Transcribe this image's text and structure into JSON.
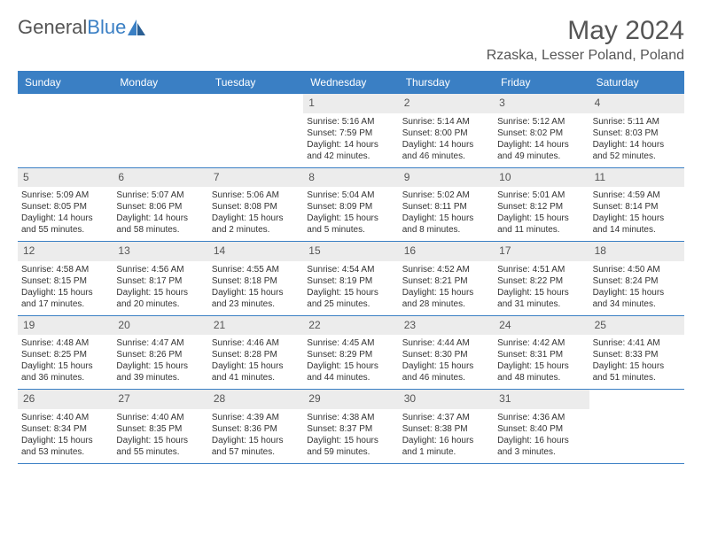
{
  "logo": {
    "text1": "General",
    "text2": "Blue"
  },
  "header": {
    "month": "May 2024",
    "location": "Rzaska, Lesser Poland, Poland"
  },
  "colors": {
    "header_bg": "#3a7fc4",
    "header_text": "#ffffff",
    "daynum_bg": "#ececec",
    "border": "#3a7fc4"
  },
  "day_labels": [
    "Sunday",
    "Monday",
    "Tuesday",
    "Wednesday",
    "Thursday",
    "Friday",
    "Saturday"
  ],
  "weeks": [
    [
      {
        "n": "",
        "sr": "",
        "ss": "",
        "dl": ""
      },
      {
        "n": "",
        "sr": "",
        "ss": "",
        "dl": ""
      },
      {
        "n": "",
        "sr": "",
        "ss": "",
        "dl": ""
      },
      {
        "n": "1",
        "sr": "Sunrise: 5:16 AM",
        "ss": "Sunset: 7:59 PM",
        "dl": "Daylight: 14 hours and 42 minutes."
      },
      {
        "n": "2",
        "sr": "Sunrise: 5:14 AM",
        "ss": "Sunset: 8:00 PM",
        "dl": "Daylight: 14 hours and 46 minutes."
      },
      {
        "n": "3",
        "sr": "Sunrise: 5:12 AM",
        "ss": "Sunset: 8:02 PM",
        "dl": "Daylight: 14 hours and 49 minutes."
      },
      {
        "n": "4",
        "sr": "Sunrise: 5:11 AM",
        "ss": "Sunset: 8:03 PM",
        "dl": "Daylight: 14 hours and 52 minutes."
      }
    ],
    [
      {
        "n": "5",
        "sr": "Sunrise: 5:09 AM",
        "ss": "Sunset: 8:05 PM",
        "dl": "Daylight: 14 hours and 55 minutes."
      },
      {
        "n": "6",
        "sr": "Sunrise: 5:07 AM",
        "ss": "Sunset: 8:06 PM",
        "dl": "Daylight: 14 hours and 58 minutes."
      },
      {
        "n": "7",
        "sr": "Sunrise: 5:06 AM",
        "ss": "Sunset: 8:08 PM",
        "dl": "Daylight: 15 hours and 2 minutes."
      },
      {
        "n": "8",
        "sr": "Sunrise: 5:04 AM",
        "ss": "Sunset: 8:09 PM",
        "dl": "Daylight: 15 hours and 5 minutes."
      },
      {
        "n": "9",
        "sr": "Sunrise: 5:02 AM",
        "ss": "Sunset: 8:11 PM",
        "dl": "Daylight: 15 hours and 8 minutes."
      },
      {
        "n": "10",
        "sr": "Sunrise: 5:01 AM",
        "ss": "Sunset: 8:12 PM",
        "dl": "Daylight: 15 hours and 11 minutes."
      },
      {
        "n": "11",
        "sr": "Sunrise: 4:59 AM",
        "ss": "Sunset: 8:14 PM",
        "dl": "Daylight: 15 hours and 14 minutes."
      }
    ],
    [
      {
        "n": "12",
        "sr": "Sunrise: 4:58 AM",
        "ss": "Sunset: 8:15 PM",
        "dl": "Daylight: 15 hours and 17 minutes."
      },
      {
        "n": "13",
        "sr": "Sunrise: 4:56 AM",
        "ss": "Sunset: 8:17 PM",
        "dl": "Daylight: 15 hours and 20 minutes."
      },
      {
        "n": "14",
        "sr": "Sunrise: 4:55 AM",
        "ss": "Sunset: 8:18 PM",
        "dl": "Daylight: 15 hours and 23 minutes."
      },
      {
        "n": "15",
        "sr": "Sunrise: 4:54 AM",
        "ss": "Sunset: 8:19 PM",
        "dl": "Daylight: 15 hours and 25 minutes."
      },
      {
        "n": "16",
        "sr": "Sunrise: 4:52 AM",
        "ss": "Sunset: 8:21 PM",
        "dl": "Daylight: 15 hours and 28 minutes."
      },
      {
        "n": "17",
        "sr": "Sunrise: 4:51 AM",
        "ss": "Sunset: 8:22 PM",
        "dl": "Daylight: 15 hours and 31 minutes."
      },
      {
        "n": "18",
        "sr": "Sunrise: 4:50 AM",
        "ss": "Sunset: 8:24 PM",
        "dl": "Daylight: 15 hours and 34 minutes."
      }
    ],
    [
      {
        "n": "19",
        "sr": "Sunrise: 4:48 AM",
        "ss": "Sunset: 8:25 PM",
        "dl": "Daylight: 15 hours and 36 minutes."
      },
      {
        "n": "20",
        "sr": "Sunrise: 4:47 AM",
        "ss": "Sunset: 8:26 PM",
        "dl": "Daylight: 15 hours and 39 minutes."
      },
      {
        "n": "21",
        "sr": "Sunrise: 4:46 AM",
        "ss": "Sunset: 8:28 PM",
        "dl": "Daylight: 15 hours and 41 minutes."
      },
      {
        "n": "22",
        "sr": "Sunrise: 4:45 AM",
        "ss": "Sunset: 8:29 PM",
        "dl": "Daylight: 15 hours and 44 minutes."
      },
      {
        "n": "23",
        "sr": "Sunrise: 4:44 AM",
        "ss": "Sunset: 8:30 PM",
        "dl": "Daylight: 15 hours and 46 minutes."
      },
      {
        "n": "24",
        "sr": "Sunrise: 4:42 AM",
        "ss": "Sunset: 8:31 PM",
        "dl": "Daylight: 15 hours and 48 minutes."
      },
      {
        "n": "25",
        "sr": "Sunrise: 4:41 AM",
        "ss": "Sunset: 8:33 PM",
        "dl": "Daylight: 15 hours and 51 minutes."
      }
    ],
    [
      {
        "n": "26",
        "sr": "Sunrise: 4:40 AM",
        "ss": "Sunset: 8:34 PM",
        "dl": "Daylight: 15 hours and 53 minutes."
      },
      {
        "n": "27",
        "sr": "Sunrise: 4:40 AM",
        "ss": "Sunset: 8:35 PM",
        "dl": "Daylight: 15 hours and 55 minutes."
      },
      {
        "n": "28",
        "sr": "Sunrise: 4:39 AM",
        "ss": "Sunset: 8:36 PM",
        "dl": "Daylight: 15 hours and 57 minutes."
      },
      {
        "n": "29",
        "sr": "Sunrise: 4:38 AM",
        "ss": "Sunset: 8:37 PM",
        "dl": "Daylight: 15 hours and 59 minutes."
      },
      {
        "n": "30",
        "sr": "Sunrise: 4:37 AM",
        "ss": "Sunset: 8:38 PM",
        "dl": "Daylight: 16 hours and 1 minute."
      },
      {
        "n": "31",
        "sr": "Sunrise: 4:36 AM",
        "ss": "Sunset: 8:40 PM",
        "dl": "Daylight: 16 hours and 3 minutes."
      },
      {
        "n": "",
        "sr": "",
        "ss": "",
        "dl": ""
      }
    ]
  ]
}
